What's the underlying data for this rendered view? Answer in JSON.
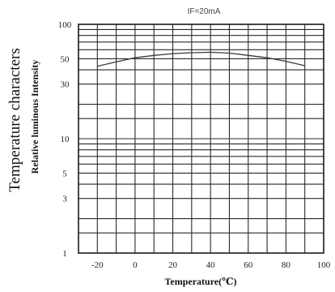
{
  "chart_data": {
    "type": "line",
    "title": "IF=20mA",
    "side_label": "Temperature characters",
    "ylabel": "Relative luminous Intensity",
    "xlabel": "Temperature(℃)",
    "y_scale": "log",
    "ylim": [
      1,
      100
    ],
    "xlim": [
      -30,
      100
    ],
    "x_ticks": [
      -20,
      0,
      20,
      40,
      60,
      80,
      100
    ],
    "x_tick_labels": [
      "-20",
      "0",
      "20",
      "40",
      "60",
      "80",
      "100"
    ],
    "y_ticks": [
      1,
      3,
      5,
      10,
      30,
      50,
      100
    ],
    "y_tick_labels": [
      "1",
      "3",
      "5",
      "10",
      "30",
      "50",
      "100"
    ],
    "grid": true,
    "series": [
      {
        "x": [
          -20,
          -10,
          0,
          10,
          20,
          30,
          40,
          50,
          60,
          70,
          80,
          90
        ],
        "y": [
          43,
          47,
          51,
          53.5,
          55.5,
          56.5,
          57,
          56,
          53.5,
          51,
          47.5,
          43.5
        ]
      }
    ]
  }
}
